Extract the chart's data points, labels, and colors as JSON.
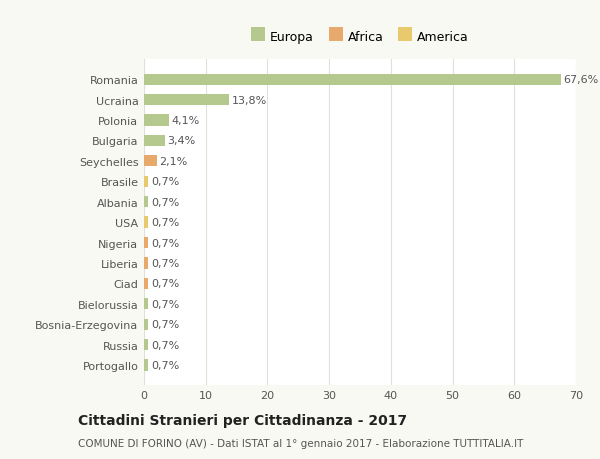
{
  "categories": [
    "Portogallo",
    "Russia",
    "Bosnia-Erzegovina",
    "Bielorussia",
    "Ciad",
    "Liberia",
    "Nigeria",
    "USA",
    "Albania",
    "Brasile",
    "Seychelles",
    "Bulgaria",
    "Polonia",
    "Ucraina",
    "Romania"
  ],
  "values": [
    0.7,
    0.7,
    0.7,
    0.7,
    0.7,
    0.7,
    0.7,
    0.7,
    0.7,
    0.7,
    2.1,
    3.4,
    4.1,
    13.8,
    67.6
  ],
  "labels": [
    "0,7%",
    "0,7%",
    "0,7%",
    "0,7%",
    "0,7%",
    "0,7%",
    "0,7%",
    "0,7%",
    "0,7%",
    "0,7%",
    "2,1%",
    "3,4%",
    "4,1%",
    "13,8%",
    "67,6%"
  ],
  "colors": [
    "#b5c98e",
    "#b5c98e",
    "#b5c98e",
    "#b5c98e",
    "#e8a96d",
    "#e8a96d",
    "#e8a96d",
    "#e8c96d",
    "#b5c98e",
    "#e8c96d",
    "#e8a96d",
    "#b5c98e",
    "#b5c98e",
    "#b5c98e",
    "#b5c98e"
  ],
  "legend_labels": [
    "Europa",
    "Africa",
    "America"
  ],
  "legend_colors": [
    "#b5c98e",
    "#e8a96d",
    "#e8c96d"
  ],
  "title": "Cittadini Stranieri per Cittadinanza - 2017",
  "subtitle": "COMUNE DI FORINO (AV) - Dati ISTAT al 1° gennaio 2017 - Elaborazione TUTTITALIA.IT",
  "xlim": [
    0,
    70
  ],
  "xticks": [
    0,
    10,
    20,
    30,
    40,
    50,
    60,
    70
  ],
  "background_color": "#f9f9f3",
  "plot_bg_color": "#ffffff",
  "grid_color": "#e0e0d8",
  "bar_height": 0.55,
  "title_fontsize": 10,
  "subtitle_fontsize": 7.5,
  "tick_fontsize": 8,
  "label_fontsize": 8
}
